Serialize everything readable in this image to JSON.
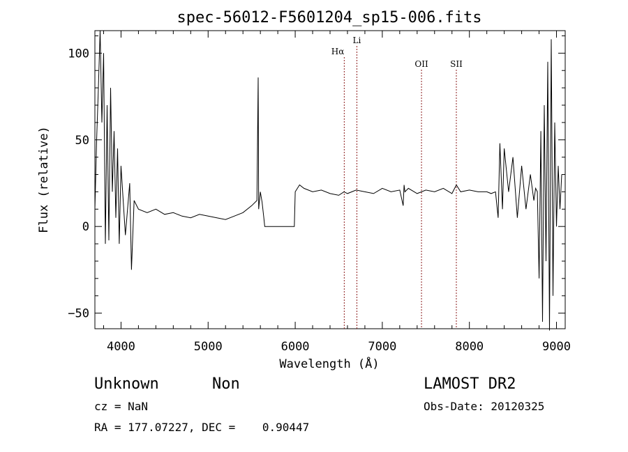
{
  "chart_data": {
    "type": "line",
    "title": "spec-56012-F5601204_sp15-006.fits",
    "xlabel": "Wavelength (Å)",
    "ylabel": "Flux (relative)",
    "xlim": [
      3700,
      9100
    ],
    "ylim": [
      -59,
      113
    ],
    "x_ticks": [
      4000,
      5000,
      6000,
      7000,
      8000,
      9000
    ],
    "x_tick_labels": [
      "4000",
      "5000",
      "6000",
      "7000",
      "8000",
      "9000"
    ],
    "y_ticks": [
      100,
      50,
      0,
      -50
    ],
    "y_tick_labels": [
      "100",
      "50",
      "0",
      "−50"
    ],
    "grid": false,
    "line_color": "#000000",
    "marker_color": "#8b1a1a",
    "lines": [
      {
        "label": "Hα",
        "x": 6563
      },
      {
        "label": "Li",
        "x": 6708
      },
      {
        "label": "OII",
        "x": 7450
      },
      {
        "label": "SII",
        "x": 7850
      }
    ],
    "series": [
      {
        "x": [
          3700,
          3720,
          3740,
          3760,
          3780,
          3800,
          3820,
          3840,
          3860,
          3880,
          3900,
          3920,
          3940,
          3960,
          3980,
          4000,
          4050,
          4100,
          4120,
          4150,
          4200,
          4300,
          4400,
          4500,
          4600,
          4700,
          4800,
          4900,
          5000,
          5100,
          5200,
          5300,
          5400,
          5500,
          5560,
          5575,
          5580,
          5600,
          5620,
          5640,
          5650,
          5660,
          5980,
          5990,
          6000,
          6050,
          6100,
          6200,
          6300,
          6400,
          6500,
          6560,
          6600,
          6700,
          6800,
          6900,
          7000,
          7100,
          7200,
          7240,
          7250,
          7260,
          7300,
          7400,
          7500,
          7600,
          7700,
          7800,
          7850,
          7900,
          8000,
          8100,
          8200,
          8250,
          8300,
          8330,
          8350,
          8380,
          8400,
          8450,
          8500,
          8550,
          8600,
          8650,
          8700,
          8740,
          8760,
          8780,
          8800,
          8820,
          8840,
          8860,
          8880,
          8900,
          8920,
          8940,
          8960,
          8980,
          9000,
          9020,
          9040,
          9060
        ],
        "y": [
          10,
          50,
          80,
          113,
          60,
          100,
          -10,
          70,
          -8,
          80,
          20,
          55,
          5,
          45,
          -10,
          35,
          -5,
          25,
          -25,
          15,
          10,
          8,
          10,
          7,
          8,
          6,
          5,
          7,
          6,
          5,
          4,
          6,
          8,
          12,
          15,
          86,
          10,
          20,
          14,
          5,
          0,
          0,
          0,
          0,
          20,
          24,
          22,
          20,
          21,
          19,
          18,
          20,
          19,
          21,
          20,
          19,
          22,
          20,
          21,
          12,
          24,
          20,
          22,
          19,
          21,
          20,
          22,
          19,
          24,
          20,
          21,
          20,
          20,
          19,
          20,
          5,
          48,
          10,
          45,
          20,
          40,
          5,
          35,
          10,
          30,
          15,
          22,
          20,
          -30,
          55,
          -55,
          70,
          -20,
          95,
          -60,
          108,
          -40,
          60,
          0,
          35,
          10,
          30
        ]
      }
    ],
    "annotations": {
      "class_label": "Unknown",
      "subclass_label": "Non",
      "cz": "cz = NaN",
      "radec": "RA = 177.07227, DEC =    0.90447",
      "survey": "LAMOST DR2",
      "obs_date": "Obs-Date: 20120325"
    }
  }
}
